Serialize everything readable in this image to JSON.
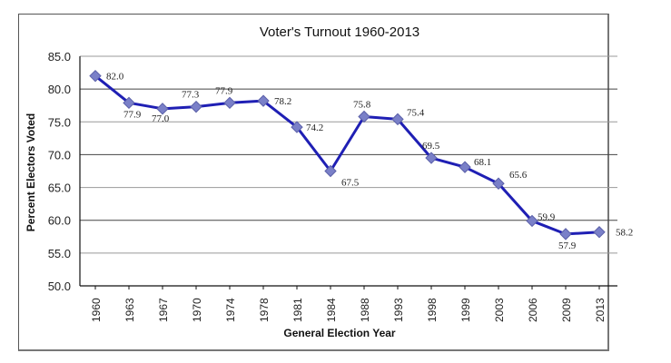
{
  "chart_data": {
    "type": "line",
    "title": "Voter's Turnout 1960-2013",
    "xlabel": "General Election Year",
    "ylabel": "Percent Electors Voted",
    "categories": [
      "1960",
      "1963",
      "1967",
      "1970",
      "1974",
      "1978",
      "1981",
      "1984",
      "1988",
      "1993",
      "1998",
      "1999",
      "2003",
      "2006",
      "2009",
      "2013"
    ],
    "series": [
      {
        "name": "Voter Turnout",
        "color": "#1f1fb4",
        "marker_color": "#7a80c8",
        "values": [
          82.0,
          77.9,
          77.0,
          77.3,
          77.9,
          78.2,
          74.2,
          67.5,
          75.8,
          75.4,
          69.5,
          68.1,
          65.6,
          59.9,
          57.9,
          58.2
        ],
        "labels": [
          "82.0",
          "77.9",
          "77.0",
          "77.3",
          "77.9",
          "78.2",
          "74.2",
          "67.5",
          "75.8",
          "75.4",
          "69.5",
          "68.1",
          "65.6",
          "59.9",
          "57.9",
          "58.2"
        ]
      }
    ],
    "ylim": [
      50,
      85
    ],
    "yticks": [
      "50.0",
      "55.0",
      "60.0",
      "65.0",
      "70.0",
      "75.0",
      "80.0",
      "85.0"
    ],
    "grid": true,
    "legend": "none"
  }
}
